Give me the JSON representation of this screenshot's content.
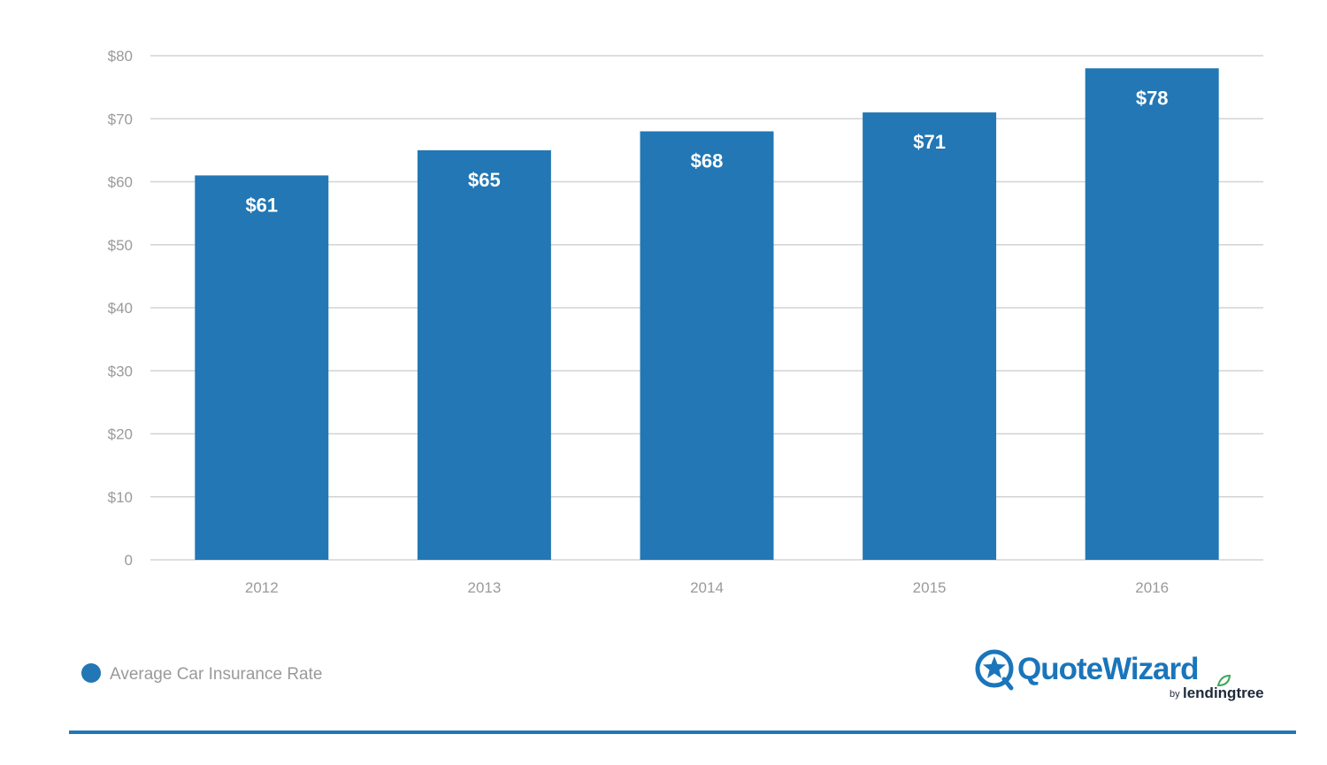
{
  "chart_data": {
    "type": "bar",
    "categories": [
      "2012",
      "2013",
      "2014",
      "2015",
      "2016"
    ],
    "series": [
      {
        "name": "Average Car Insurance Rate",
        "values": [
          61,
          65,
          68,
          71,
          78
        ]
      }
    ],
    "data_labels": [
      "$61",
      "$65",
      "$68",
      "$71",
      "$78"
    ],
    "title": "",
    "xlabel": "",
    "ylabel": "",
    "ylim": [
      0,
      80
    ],
    "y_ticks": [
      0,
      10,
      20,
      30,
      40,
      50,
      60,
      70,
      80
    ],
    "y_tick_labels": [
      "0",
      "$10",
      "$20",
      "$30",
      "$40",
      "$50",
      "$60",
      "$70",
      "$80"
    ],
    "grid": true,
    "legend_position": "bottom-left"
  },
  "colors": {
    "bar": "#2277b4",
    "grid": "#d3d3d3",
    "tick_text": "#9a9a9a",
    "brand_blue": "#1a75bb",
    "brand_green": "#3aa857",
    "brand_dark": "#1d2a3a"
  },
  "branding": {
    "name": "QuoteWizard",
    "by": "by",
    "partner": "lendingtree",
    "icon": "quotewizard-star-icon"
  }
}
